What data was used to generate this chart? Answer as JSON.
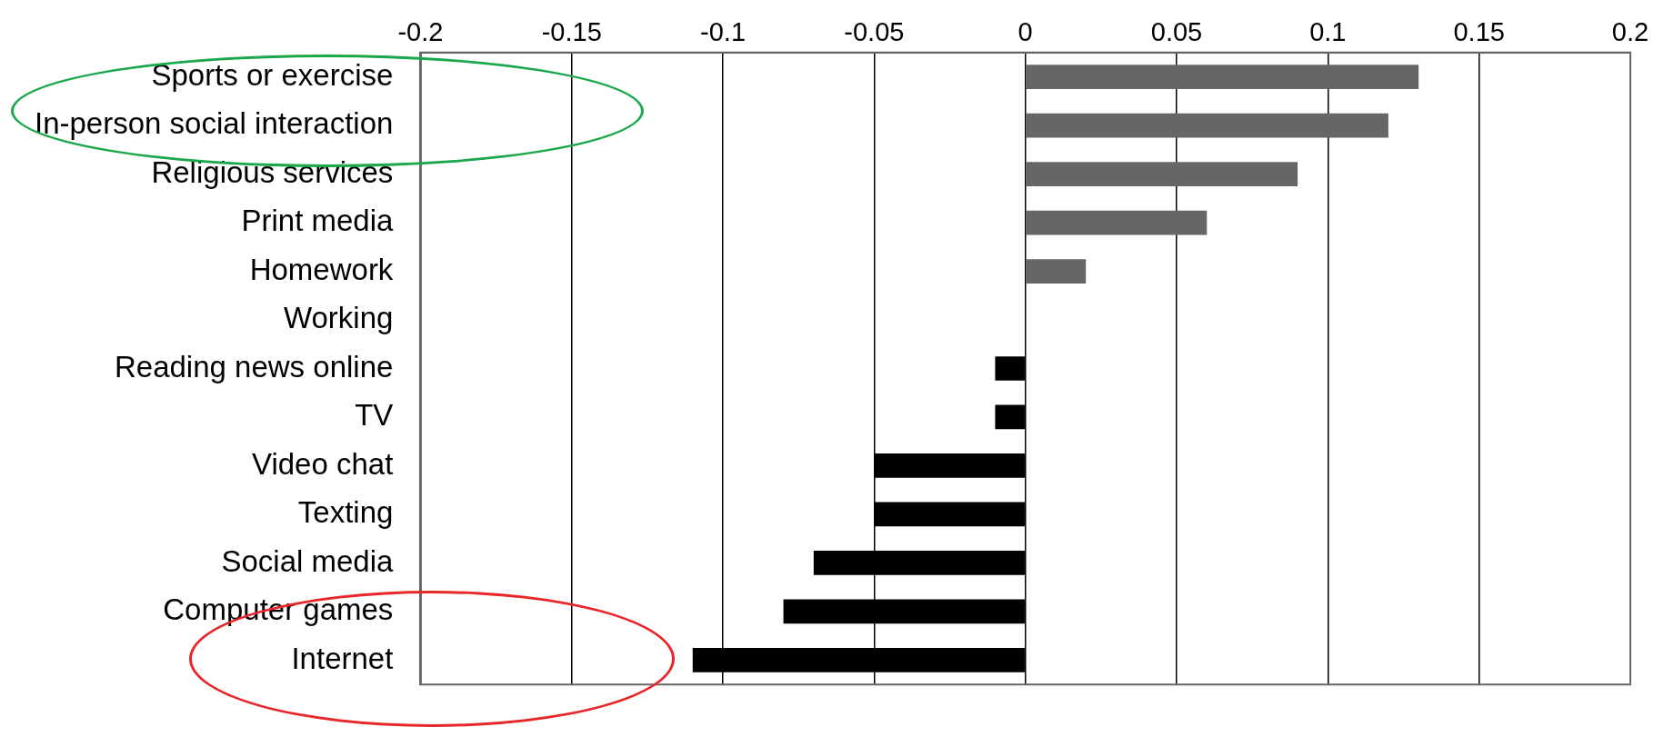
{
  "chart_data": {
    "type": "bar",
    "orientation": "horizontal",
    "categories": [
      "Sports or exercise",
      "In-person social interaction",
      "Religious services",
      "Print media",
      "Homework",
      "Working",
      "Reading news online",
      "TV",
      "Video chat",
      "Texting",
      "Social media",
      "Computer games",
      "Internet"
    ],
    "values": [
      0.13,
      0.12,
      0.09,
      0.06,
      0.02,
      0,
      -0.01,
      -0.01,
      -0.05,
      -0.05,
      -0.07,
      -0.08,
      -0.11
    ],
    "colors": [
      "#666666",
      "#666666",
      "#666666",
      "#666666",
      "#666666",
      "#666666",
      "#000000",
      "#000000",
      "#000000",
      "#000000",
      "#000000",
      "#000000",
      "#000000"
    ],
    "xlim": [
      -0.2,
      0.2
    ],
    "xticks": [
      -0.2,
      -0.15,
      -0.1,
      -0.05,
      0,
      0.05,
      0.1,
      0.15,
      0.2
    ],
    "grid": "x",
    "legend": false
  }
}
